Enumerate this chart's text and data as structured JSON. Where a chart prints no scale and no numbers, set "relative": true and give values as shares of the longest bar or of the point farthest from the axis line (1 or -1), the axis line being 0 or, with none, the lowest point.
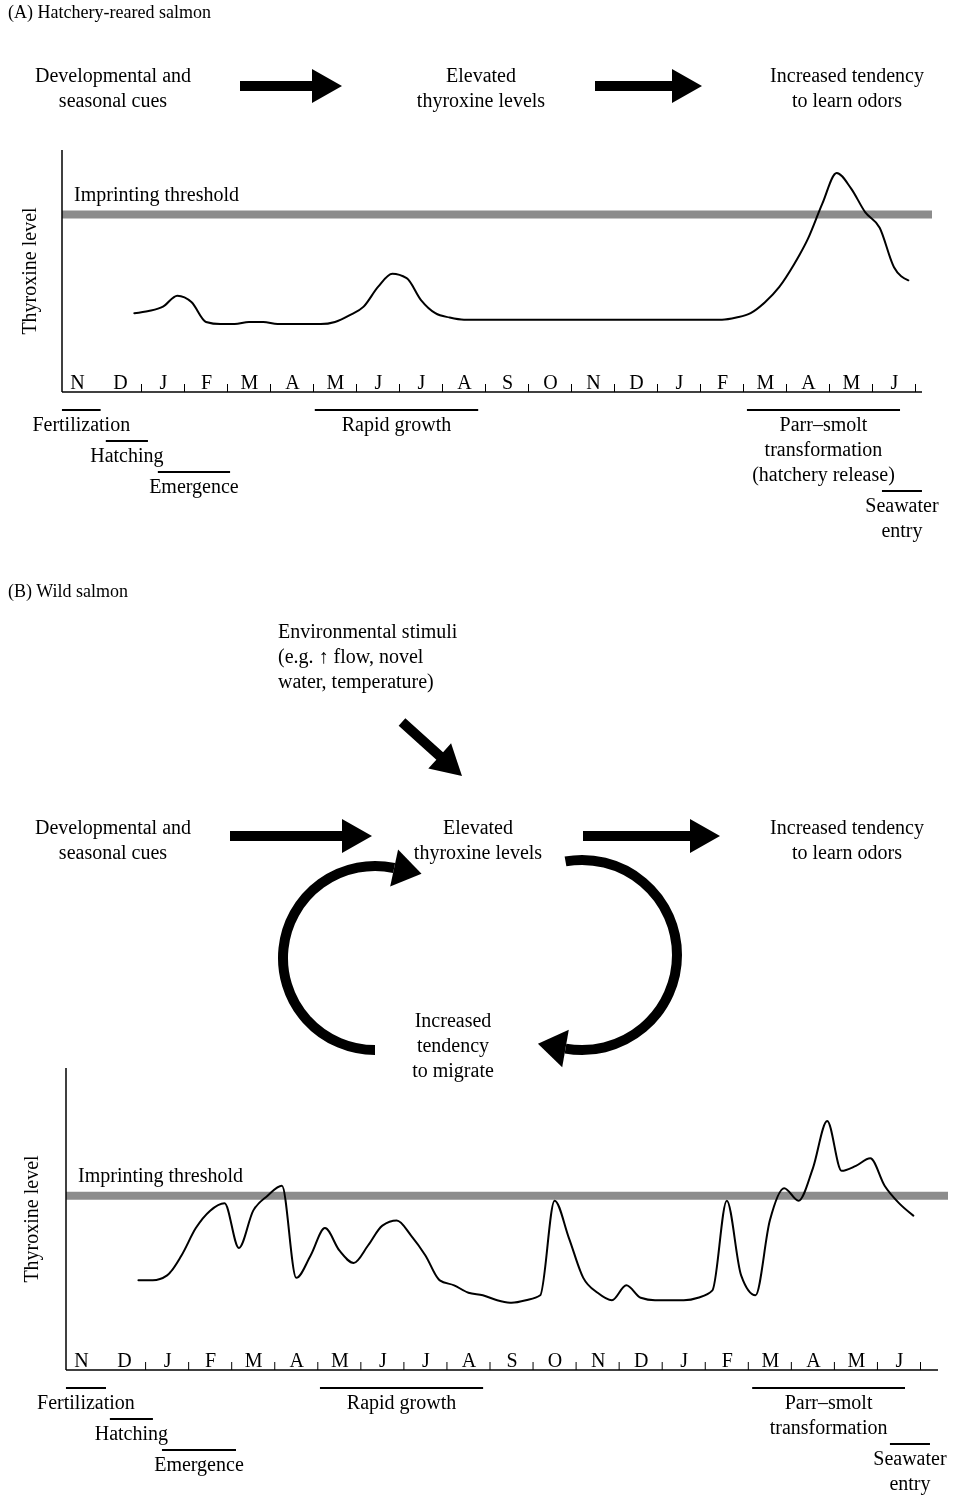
{
  "chart_data": [
    {
      "type": "line",
      "title": "(A) Hatchery-reared salmon",
      "ylabel": "Thyroxine level",
      "relative": true,
      "color": "#000000",
      "categories": [
        null,
        "N",
        null,
        null,
        "D",
        null,
        null,
        "J",
        null,
        null,
        "F",
        null,
        null,
        "M",
        null,
        null,
        "A",
        null,
        null,
        "M",
        null,
        null,
        "J",
        null,
        null,
        "J",
        null,
        null,
        "A",
        null,
        null,
        "S",
        null,
        null,
        "O",
        null,
        null,
        "N",
        null,
        null,
        "D",
        null,
        null,
        "J",
        null,
        null,
        "F",
        null,
        null,
        "M",
        null,
        null,
        "A",
        null,
        null,
        "M",
        null,
        null,
        "J",
        null
      ],
      "values": [
        null,
        null,
        null,
        null,
        null,
        0.36,
        0.37,
        0.39,
        0.44,
        0.41,
        0.32,
        0.31,
        0.31,
        0.32,
        0.32,
        0.31,
        0.31,
        0.31,
        0.31,
        0.32,
        0.35,
        0.39,
        0.48,
        0.54,
        0.52,
        0.42,
        0.36,
        0.34,
        0.33,
        0.33,
        0.33,
        0.33,
        0.33,
        0.33,
        0.33,
        0.33,
        0.33,
        0.33,
        0.33,
        0.33,
        0.33,
        0.33,
        0.33,
        0.33,
        0.33,
        0.33,
        0.33,
        0.34,
        0.36,
        0.41,
        0.48,
        0.58,
        0.7,
        0.86,
        1.0,
        0.93,
        0.82,
        0.75,
        0.57,
        0.51
      ],
      "ref_lines": [
        {
          "axis": "y",
          "value": 0.81,
          "label": "Imprinting threshold",
          "color": "#8c8c8c"
        }
      ],
      "annotations": [
        "Developmental and seasonal cues",
        "Elevated thyroxine levels",
        "Increased tendency to learn odors",
        "Fertilization",
        "Hatching",
        "Emergence",
        "Rapid growth",
        "Parr–smolt transformation (hatchery release)",
        "Seawater entry"
      ]
    },
    {
      "type": "line",
      "title": "(B) Wild salmon",
      "ylabel": "Thyroxine level",
      "relative": true,
      "color": "#000000",
      "categories": [
        null,
        "N",
        null,
        null,
        "D",
        null,
        null,
        "J",
        null,
        null,
        "F",
        null,
        null,
        "M",
        null,
        null,
        "A",
        null,
        null,
        "M",
        null,
        null,
        "J",
        null,
        null,
        "J",
        null,
        null,
        "A",
        null,
        null,
        "S",
        null,
        null,
        "O",
        null,
        null,
        "N",
        null,
        null,
        "D",
        null,
        null,
        "J",
        null,
        null,
        "F",
        null,
        null,
        "M",
        null,
        null,
        "A",
        null,
        null,
        "M",
        null,
        null,
        "J",
        null
      ],
      "values": [
        null,
        null,
        null,
        null,
        null,
        0.36,
        0.36,
        0.38,
        0.46,
        0.57,
        0.64,
        0.67,
        0.49,
        0.64,
        0.7,
        0.74,
        0.37,
        0.46,
        0.57,
        0.48,
        0.43,
        0.5,
        0.58,
        0.6,
        0.54,
        0.46,
        0.36,
        0.34,
        0.31,
        0.3,
        0.28,
        0.27,
        0.28,
        0.3,
        0.68,
        0.53,
        0.37,
        0.31,
        0.28,
        0.34,
        0.29,
        0.28,
        0.28,
        0.28,
        0.29,
        0.32,
        0.68,
        0.38,
        0.3,
        0.6,
        0.73,
        0.68,
        0.81,
        1.0,
        0.8,
        0.82,
        0.85,
        0.74,
        0.67,
        0.62
      ],
      "ref_lines": [
        {
          "axis": "y",
          "value": 0.7,
          "label": "Imprinting threshold",
          "color": "#8c8c8c"
        }
      ],
      "annotations": [
        "Environmental stimuli (e.g. ↑ flow, novel water, temperature)",
        "Developmental and seasonal cues",
        "Elevated thyroxine levels",
        "Increased tendency to learn odors",
        "Increased tendency to migrate",
        "Fertilization",
        "Hatching",
        "Emergence",
        "Rapid growth",
        "Parr–smolt transformation",
        "Seawater entry"
      ]
    }
  ]
}
